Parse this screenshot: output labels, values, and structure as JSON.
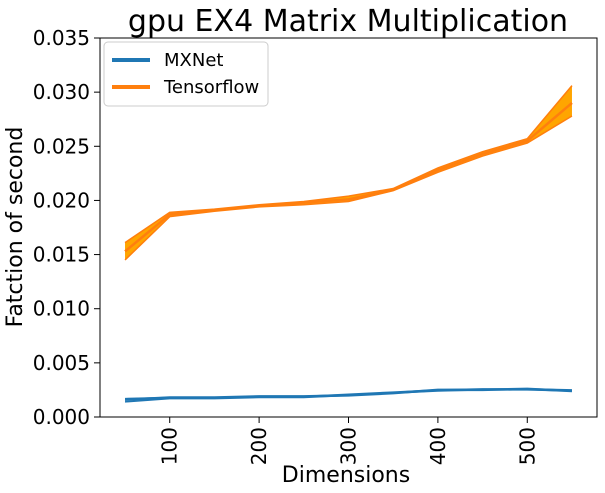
{
  "chart_data": {
    "type": "line",
    "title": "gpu EX4 Matrix Multiplication",
    "xlabel": "Dimensions",
    "ylabel": "Fatction of second",
    "xlim": [
      22,
      578
    ],
    "ylim": [
      0,
      0.035
    ],
    "x_ticks": [
      100,
      200,
      300,
      400,
      500
    ],
    "y_ticks": [
      0.0,
      0.005,
      0.01,
      0.015,
      0.02,
      0.025,
      0.03,
      0.035
    ],
    "y_tick_labels": [
      "0.000",
      "0.005",
      "0.010",
      "0.015",
      "0.020",
      "0.025",
      "0.030",
      "0.035"
    ],
    "x_tick_rotation": 90,
    "grid": false,
    "legend": {
      "placement": "top-left"
    },
    "series": [
      {
        "name": "MXNet",
        "color": "#1f77b4",
        "x": [
          50,
          100,
          150,
          200,
          250,
          300,
          350,
          400,
          450,
          500,
          550
        ],
        "values": [
          0.0016,
          0.0018,
          0.0018,
          0.0019,
          0.0019,
          0.002,
          0.0022,
          0.0025,
          0.0025,
          0.0026,
          0.0024
        ],
        "band_low": [
          0.0014,
          0.0017,
          0.0017,
          0.0018,
          0.0018,
          0.002,
          0.0022,
          0.0024,
          0.0025,
          0.0025,
          0.0024
        ],
        "band_high": [
          0.0017,
          0.0018,
          0.0018,
          0.0019,
          0.0019,
          0.0021,
          0.0023,
          0.0025,
          0.0026,
          0.0026,
          0.0025
        ]
      },
      {
        "name": "Tensorflow",
        "color": "#ff7f0e",
        "fill_color": "#ffa500",
        "x": [
          50,
          100,
          150,
          200,
          250,
          300,
          350,
          400,
          450,
          500,
          550
        ],
        "values": [
          0.0153,
          0.0187,
          0.0191,
          0.0195,
          0.0198,
          0.0201,
          0.021,
          0.0228,
          0.0243,
          0.0255,
          0.029
        ],
        "band_low": [
          0.0145,
          0.0185,
          0.019,
          0.0194,
          0.0196,
          0.0199,
          0.0209,
          0.0226,
          0.0241,
          0.0253,
          0.0278
        ],
        "band_high": [
          0.0161,
          0.0189,
          0.0192,
          0.0196,
          0.0199,
          0.0204,
          0.0211,
          0.023,
          0.0245,
          0.0257,
          0.0306
        ]
      }
    ]
  }
}
